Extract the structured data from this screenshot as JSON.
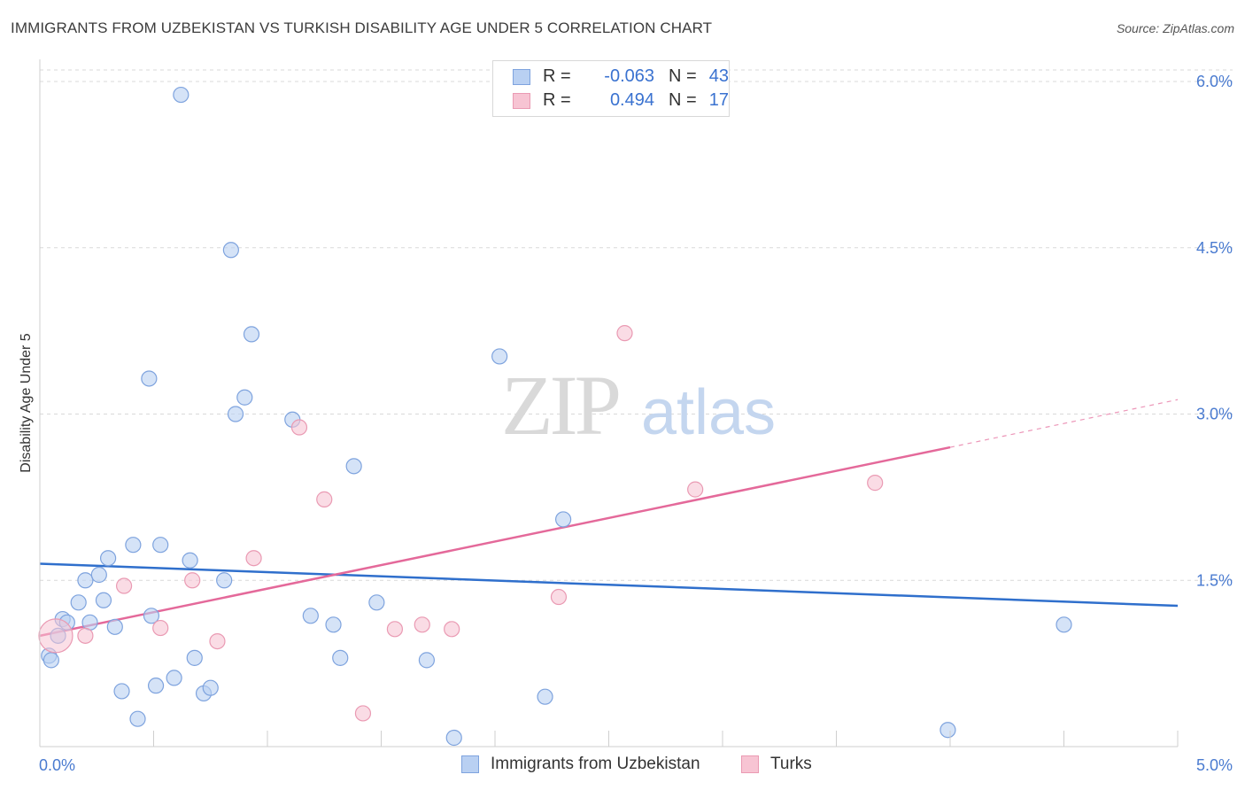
{
  "title": "IMMIGRANTS FROM UZBEKISTAN VS TURKISH DISABILITY AGE UNDER 5 CORRELATION CHART",
  "source": "Source: ZipAtlas.com",
  "watermark": {
    "zip": "ZIP",
    "atlas": "atlas"
  },
  "legend": {
    "rows": [
      {
        "r_label": "R =",
        "r_value": "-0.063",
        "n_label": "N =",
        "n_value": "43"
      },
      {
        "r_label": "R =",
        "r_value": "0.494",
        "n_label": "N =",
        "n_value": "17"
      }
    ]
  },
  "bottom_legend": [
    {
      "label": "Immigrants from Uzbekistan"
    },
    {
      "label": "Turks"
    }
  ],
  "colors": {
    "blue_fill": "#b9d0f2",
    "blue_stroke": "#7ea3de",
    "blue_line": "#2f6fcc",
    "pink_fill": "#f7c4d3",
    "pink_stroke": "#ea9ab3",
    "pink_line": "#e4699a",
    "grid": "#d9d9d9",
    "axis_text": "#4a7bd0"
  },
  "chart_data": {
    "type": "scatter",
    "title": "IMMIGRANTS FROM UZBEKISTAN VS TURKISH DISABILITY AGE UNDER 5 CORRELATION CHART",
    "xlabel": "",
    "ylabel": "Disability Age Under 5",
    "xlim": [
      0,
      5
    ],
    "ylim": [
      0,
      6.2
    ],
    "x_tick_labels": [
      "0.0%",
      "5.0%"
    ],
    "y_ticks": [
      1.5,
      3.0,
      4.5,
      6.0
    ],
    "y_tick_labels": [
      "1.5%",
      "3.0%",
      "4.5%",
      "6.0%"
    ],
    "series": [
      {
        "name": "Immigrants from Uzbekistan",
        "color": "blue",
        "points": [
          [
            0.04,
            0.82
          ],
          [
            0.05,
            0.78
          ],
          [
            0.08,
            1.0
          ],
          [
            0.1,
            1.15
          ],
          [
            0.12,
            1.12
          ],
          [
            0.17,
            1.3
          ],
          [
            0.2,
            1.5
          ],
          [
            0.22,
            1.12
          ],
          [
            0.26,
            1.55
          ],
          [
            0.28,
            1.32
          ],
          [
            0.3,
            1.7
          ],
          [
            0.33,
            1.08
          ],
          [
            0.36,
            0.5
          ],
          [
            0.41,
            1.82
          ],
          [
            0.43,
            0.25
          ],
          [
            0.48,
            3.32
          ],
          [
            0.49,
            1.18
          ],
          [
            0.51,
            0.55
          ],
          [
            0.53,
            1.82
          ],
          [
            0.59,
            0.62
          ],
          [
            0.62,
            5.88
          ],
          [
            0.66,
            1.68
          ],
          [
            0.68,
            0.8
          ],
          [
            0.72,
            0.48
          ],
          [
            0.75,
            0.53
          ],
          [
            0.81,
            1.5
          ],
          [
            0.84,
            4.48
          ],
          [
            0.86,
            3.0
          ],
          [
            0.9,
            3.15
          ],
          [
            0.93,
            3.72
          ],
          [
            1.11,
            2.95
          ],
          [
            1.19,
            1.18
          ],
          [
            1.29,
            1.1
          ],
          [
            1.32,
            0.8
          ],
          [
            1.38,
            2.53
          ],
          [
            1.48,
            1.3
          ],
          [
            1.7,
            0.78
          ],
          [
            1.82,
            0.08
          ],
          [
            2.02,
            3.52
          ],
          [
            2.22,
            0.45
          ],
          [
            2.3,
            2.05
          ],
          [
            3.99,
            0.15
          ],
          [
            4.5,
            1.1
          ]
        ],
        "trend": {
          "x": [
            0.0,
            5.0
          ],
          "y": [
            1.65,
            1.27
          ]
        }
      },
      {
        "name": "Turks",
        "color": "pink",
        "points": [
          [
            0.07,
            1.0
          ],
          [
            0.2,
            1.0
          ],
          [
            0.37,
            1.45
          ],
          [
            0.53,
            1.07
          ],
          [
            0.67,
            1.5
          ],
          [
            0.78,
            0.95
          ],
          [
            0.94,
            1.7
          ],
          [
            1.14,
            2.88
          ],
          [
            1.25,
            2.23
          ],
          [
            1.42,
            0.3
          ],
          [
            1.56,
            1.06
          ],
          [
            1.68,
            1.1
          ],
          [
            1.81,
            1.06
          ],
          [
            2.28,
            1.35
          ],
          [
            2.57,
            3.73
          ],
          [
            2.88,
            2.32
          ],
          [
            3.67,
            2.38
          ]
        ],
        "big_point_index": 0,
        "trend": {
          "x": [
            0.0,
            4.0
          ],
          "y": [
            1.0,
            2.7
          ]
        },
        "trend_dashed_extension": {
          "x": [
            4.0,
            5.0
          ],
          "y": [
            2.7,
            3.13
          ]
        }
      }
    ]
  }
}
